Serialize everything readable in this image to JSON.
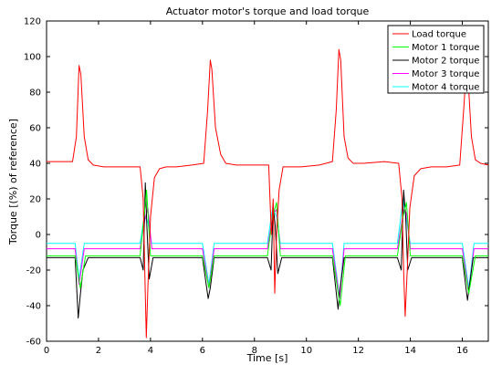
{
  "chart_data": {
    "type": "line",
    "title": "Actuator motor's torque and load torque",
    "xlabel": "Time [s]",
    "ylabel": "Torque [(%) of reference]",
    "xlim": [
      0,
      17
    ],
    "ylim": [
      -60,
      120
    ],
    "xticks": [
      0,
      2,
      4,
      6,
      8,
      10,
      12,
      14,
      16
    ],
    "yticks": [
      -60,
      -40,
      -20,
      0,
      20,
      40,
      60,
      80,
      100,
      120
    ],
    "grid": false,
    "legend_position": "top-right",
    "series": [
      {
        "name": "Load torque",
        "color": "#ff0000",
        "x": [
          0,
          0.6,
          1.0,
          1.15,
          1.25,
          1.32,
          1.45,
          1.6,
          1.8,
          2.2,
          3.0,
          3.6,
          3.72,
          3.78,
          3.84,
          3.9,
          4.0,
          4.15,
          4.35,
          4.6,
          5.0,
          5.6,
          6.05,
          6.2,
          6.3,
          6.36,
          6.5,
          6.7,
          6.9,
          7.3,
          8.0,
          8.55,
          8.65,
          8.72,
          8.78,
          8.85,
          8.95,
          9.1,
          9.4,
          9.8,
          10.5,
          11.0,
          11.15,
          11.25,
          11.32,
          11.45,
          11.6,
          11.8,
          12.2,
          13.0,
          13.55,
          13.68,
          13.74,
          13.8,
          13.88,
          13.98,
          14.15,
          14.4,
          14.8,
          15.4,
          15.9,
          16.05,
          16.15,
          16.22,
          16.35,
          16.5,
          16.7,
          17.0
        ],
        "y": [
          41,
          41,
          41,
          55,
          95,
          90,
          55,
          42,
          39,
          38,
          38,
          38,
          20,
          -20,
          -58,
          -30,
          10,
          32,
          37,
          38,
          38,
          39,
          40,
          70,
          98,
          93,
          60,
          45,
          40,
          39,
          39,
          39,
          0,
          20,
          -33,
          0,
          25,
          38,
          38,
          38,
          39,
          41,
          70,
          104,
          98,
          55,
          43,
          40,
          40,
          41,
          40,
          20,
          -20,
          -46,
          -20,
          15,
          33,
          37,
          38,
          38,
          39,
          70,
          92,
          88,
          55,
          42,
          40,
          39
        ]
      },
      {
        "name": "Motor 1 torque",
        "color": "#00ff00",
        "x": [
          0,
          1.1,
          1.3,
          1.5,
          3.6,
          3.75,
          3.85,
          4.0,
          6.0,
          6.25,
          6.45,
          8.5,
          8.7,
          8.85,
          9.0,
          11.0,
          11.3,
          11.5,
          13.5,
          13.72,
          13.85,
          14.0,
          16.0,
          16.25,
          16.5,
          17.0
        ],
        "y": [
          -12,
          -12,
          -30,
          -12,
          -12,
          10,
          25,
          -12,
          -12,
          -30,
          -12,
          -12,
          10,
          18,
          -12,
          -12,
          -40,
          -12,
          -12,
          10,
          18,
          -12,
          -12,
          -33,
          -12,
          -12
        ]
      },
      {
        "name": "Motor 2 torque",
        "color": "#000000",
        "x": [
          0,
          1.1,
          1.22,
          1.3,
          1.4,
          1.6,
          3.6,
          3.72,
          3.8,
          3.86,
          3.95,
          4.1,
          6.0,
          6.22,
          6.3,
          6.45,
          8.5,
          8.64,
          8.72,
          8.8,
          8.9,
          9.05,
          11.0,
          11.22,
          11.3,
          11.45,
          13.5,
          13.65,
          13.74,
          13.82,
          13.9,
          14.05,
          16.0,
          16.2,
          16.28,
          16.42,
          17.0
        ],
        "y": [
          -13,
          -13,
          -47,
          -34,
          -20,
          -13,
          -13,
          -20,
          29,
          5,
          -25,
          -13,
          -13,
          -36,
          -30,
          -13,
          -13,
          -20,
          16,
          5,
          -22,
          -13,
          -13,
          -42,
          -30,
          -13,
          -13,
          -20,
          25,
          10,
          -20,
          -13,
          -13,
          -37,
          -28,
          -13,
          -13
        ]
      },
      {
        "name": "Motor 3 torque",
        "color": "#ff00ff",
        "x": [
          0,
          1.1,
          1.25,
          1.45,
          3.6,
          3.78,
          3.9,
          4.05,
          6.0,
          6.25,
          6.45,
          8.5,
          8.72,
          8.85,
          9.0,
          11.0,
          11.28,
          11.45,
          13.5,
          13.75,
          13.85,
          14.0,
          16.0,
          16.25,
          16.45,
          17.0
        ],
        "y": [
          -8,
          -8,
          -28,
          -8,
          -8,
          8,
          15,
          -8,
          -8,
          -30,
          -8,
          -8,
          12,
          14,
          -8,
          -8,
          -36,
          -8,
          -8,
          14,
          12,
          -8,
          -8,
          -32,
          -8,
          -8
        ]
      },
      {
        "name": "Motor 4 torque",
        "color": "#00ffff",
        "x": [
          0,
          1.1,
          1.25,
          1.45,
          3.6,
          3.76,
          3.88,
          4.05,
          6.0,
          6.25,
          6.45,
          8.5,
          8.7,
          8.85,
          9.0,
          11.0,
          11.28,
          11.45,
          13.5,
          13.72,
          13.85,
          14.0,
          16.0,
          16.25,
          16.45,
          17.0
        ],
        "y": [
          -5,
          -5,
          -25,
          -5,
          -5,
          10,
          8,
          -5,
          -5,
          -28,
          -5,
          -5,
          15,
          10,
          -5,
          -5,
          -35,
          -5,
          -5,
          20,
          8,
          -5,
          -5,
          -30,
          -5,
          -5
        ]
      }
    ]
  }
}
